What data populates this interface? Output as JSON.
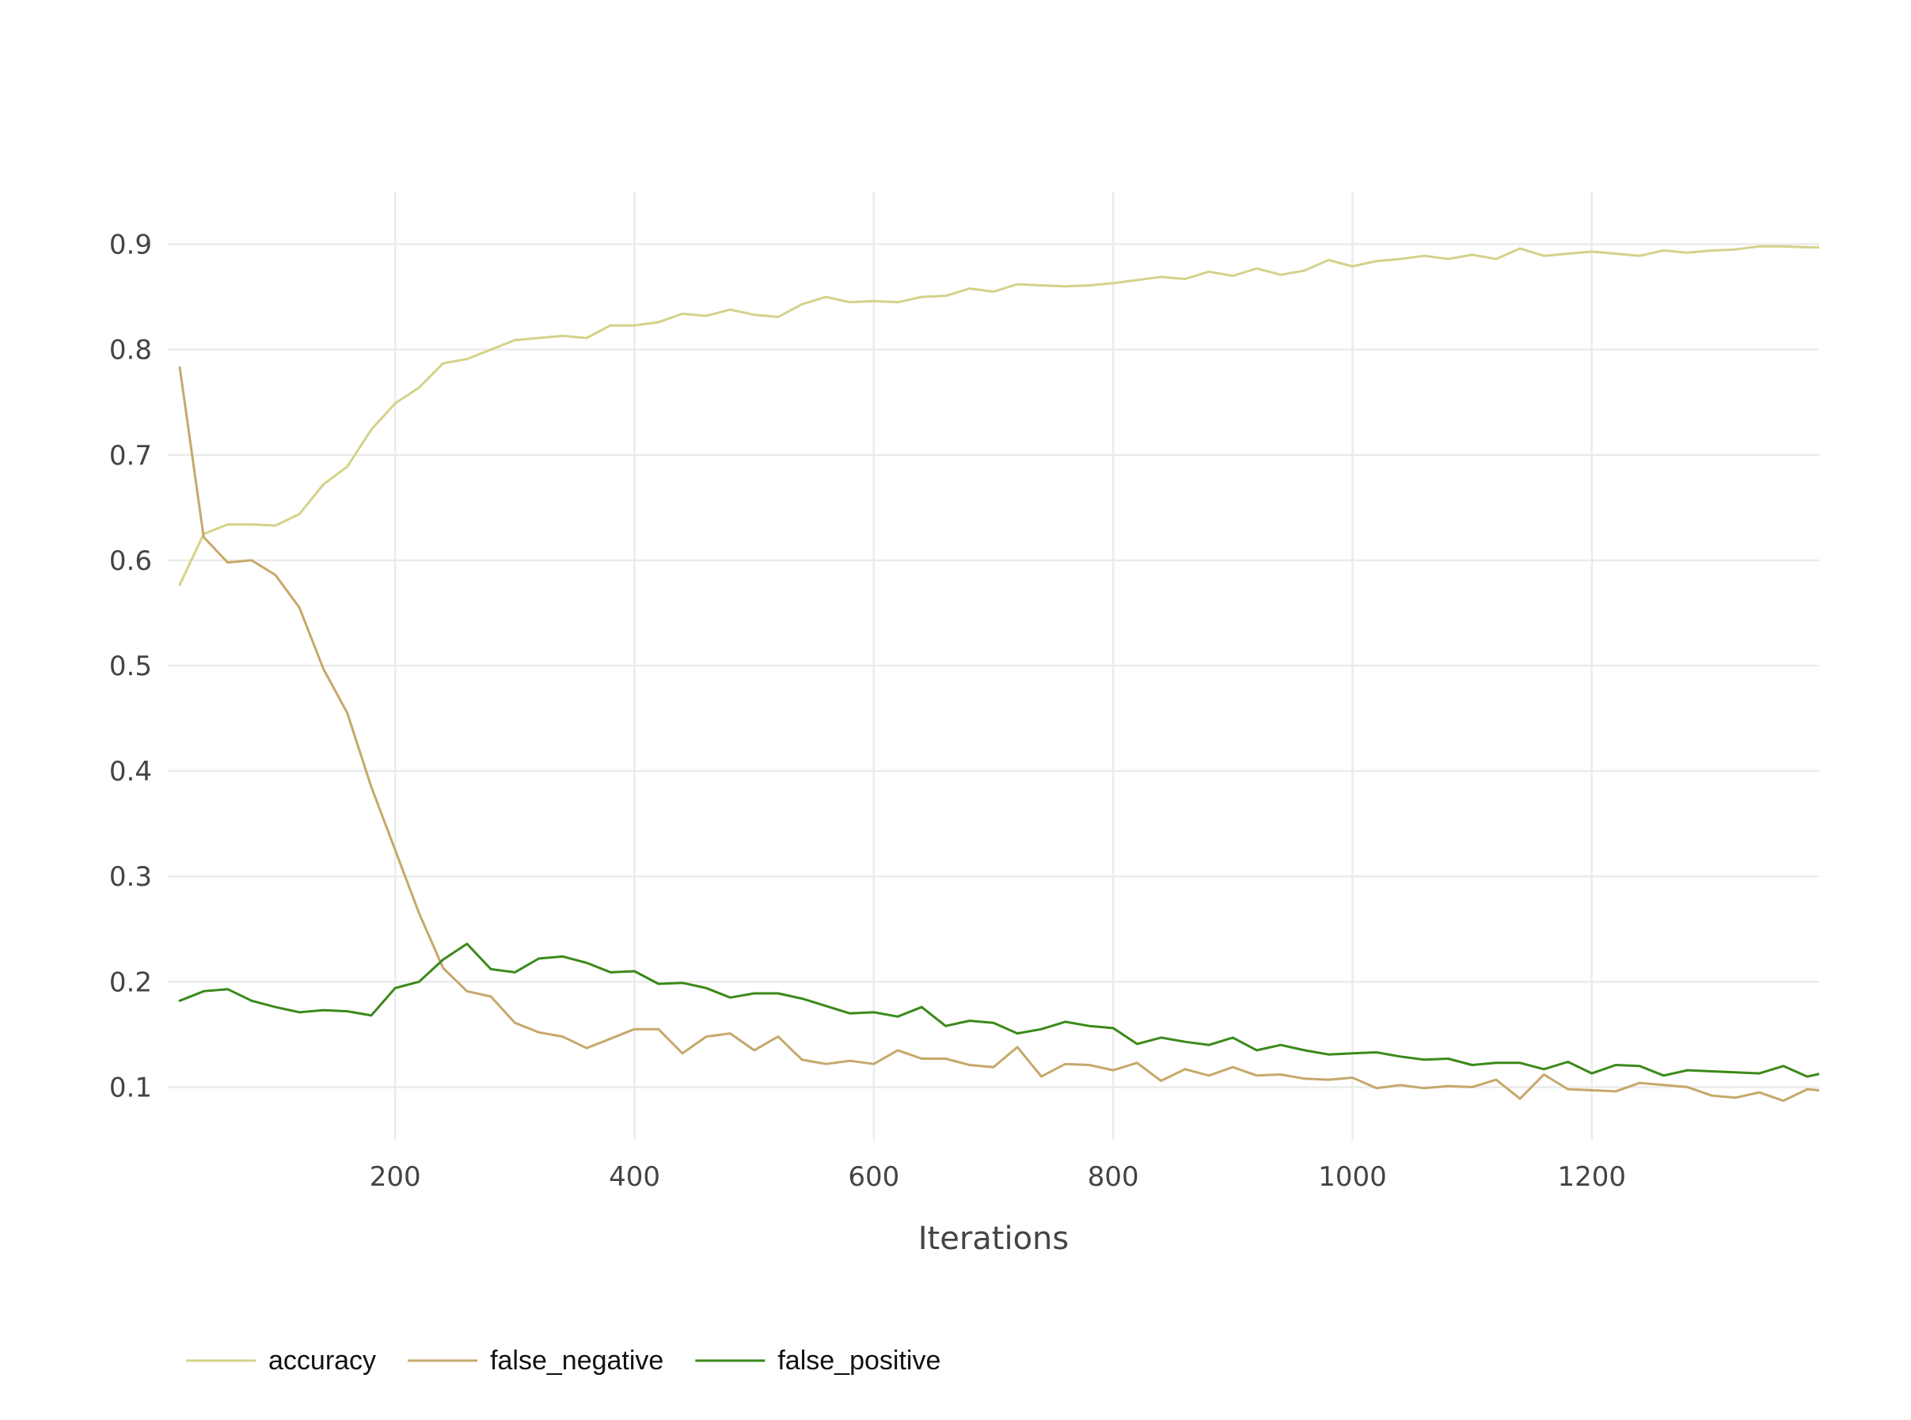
{
  "chart_data": {
    "type": "line",
    "title": "",
    "xlabel": "Iterations",
    "ylabel": "",
    "xlim": [
      10,
      1390
    ],
    "ylim": [
      0.05,
      0.95
    ],
    "xticks": [
      200,
      400,
      600,
      800,
      1000,
      1200
    ],
    "xtick_labels": [
      "200",
      "400",
      "600",
      "800",
      "1000",
      "1200"
    ],
    "yticks": [
      0.1,
      0.2,
      0.3,
      0.4,
      0.5,
      0.6,
      0.7,
      0.8,
      0.9
    ],
    "ytick_labels": [
      "0.1",
      "0.2",
      "0.3",
      "0.4",
      "0.5",
      "0.6",
      "0.7",
      "0.8",
      "0.9"
    ],
    "grid": true,
    "legend": "bottom-left, horizontal",
    "x": [
      20,
      40,
      60,
      80,
      100,
      120,
      140,
      160,
      180,
      200,
      220,
      240,
      260,
      280,
      300,
      320,
      340,
      360,
      380,
      400,
      420,
      440,
      460,
      480,
      500,
      520,
      540,
      560,
      580,
      600,
      620,
      640,
      660,
      680,
      700,
      720,
      740,
      760,
      780,
      800,
      820,
      840,
      860,
      880,
      900,
      920,
      940,
      960,
      980,
      1000,
      1020,
      1040,
      1060,
      1080,
      1100,
      1120,
      1140,
      1160,
      1180,
      1200,
      1220,
      1240,
      1260,
      1280,
      1300,
      1320,
      1340,
      1360,
      1380,
      1400
    ],
    "series": [
      {
        "name": "accuracy",
        "color": "#d4d28a",
        "values": [
          0.577,
          0.625,
          0.634,
          0.634,
          0.633,
          0.644,
          0.672,
          0.689,
          0.724,
          0.749,
          0.764,
          0.787,
          0.791,
          0.8,
          0.809,
          0.811,
          0.813,
          0.811,
          0.823,
          0.823,
          0.826,
          0.834,
          0.832,
          0.838,
          0.833,
          0.831,
          0.843,
          0.85,
          0.845,
          0.846,
          0.845,
          0.85,
          0.851,
          0.858,
          0.855,
          0.862,
          0.861,
          0.86,
          0.861,
          0.863,
          0.866,
          0.869,
          0.867,
          0.874,
          0.87,
          0.877,
          0.871,
          0.875,
          0.885,
          0.879,
          0.884,
          0.886,
          0.889,
          0.886,
          0.89,
          0.886,
          0.896,
          0.889,
          0.891,
          0.893,
          0.891,
          0.889,
          0.894,
          0.892,
          0.894,
          0.895,
          0.898,
          0.898,
          0.897,
          0.897
        ]
      },
      {
        "name": "false_negative",
        "color": "#c6a86b",
        "values": [
          0.783,
          0.622,
          0.598,
          0.6,
          0.586,
          0.555,
          0.497,
          0.455,
          0.385,
          0.325,
          0.265,
          0.213,
          0.191,
          0.186,
          0.161,
          0.152,
          0.148,
          0.137,
          0.146,
          0.155,
          0.155,
          0.132,
          0.148,
          0.151,
          0.135,
          0.148,
          0.126,
          0.122,
          0.125,
          0.122,
          0.135,
          0.127,
          0.127,
          0.121,
          0.119,
          0.138,
          0.11,
          0.122,
          0.121,
          0.116,
          0.123,
          0.106,
          0.117,
          0.111,
          0.119,
          0.111,
          0.112,
          0.108,
          0.107,
          0.109,
          0.099,
          0.102,
          0.099,
          0.101,
          0.1,
          0.107,
          0.089,
          0.112,
          0.098,
          0.097,
          0.096,
          0.104,
          0.102,
          0.1,
          0.092,
          0.09,
          0.095,
          0.087,
          0.098,
          0.096
        ]
      },
      {
        "name": "false_positive",
        "color": "#3a8a1a",
        "values": [
          0.182,
          0.191,
          0.193,
          0.182,
          0.176,
          0.171,
          0.173,
          0.172,
          0.168,
          0.194,
          0.2,
          0.221,
          0.236,
          0.212,
          0.209,
          0.222,
          0.224,
          0.218,
          0.209,
          0.21,
          0.198,
          0.199,
          0.194,
          0.185,
          0.189,
          0.189,
          0.184,
          0.177,
          0.17,
          0.171,
          0.167,
          0.176,
          0.158,
          0.163,
          0.161,
          0.151,
          0.155,
          0.162,
          0.158,
          0.156,
          0.141,
          0.147,
          0.143,
          0.14,
          0.147,
          0.135,
          0.14,
          0.135,
          0.131,
          0.132,
          0.133,
          0.129,
          0.126,
          0.127,
          0.121,
          0.123,
          0.123,
          0.117,
          0.124,
          0.113,
          0.121,
          0.12,
          0.111,
          0.116,
          0.115,
          0.114,
          0.113,
          0.12,
          0.11,
          0.115
        ]
      }
    ]
  }
}
